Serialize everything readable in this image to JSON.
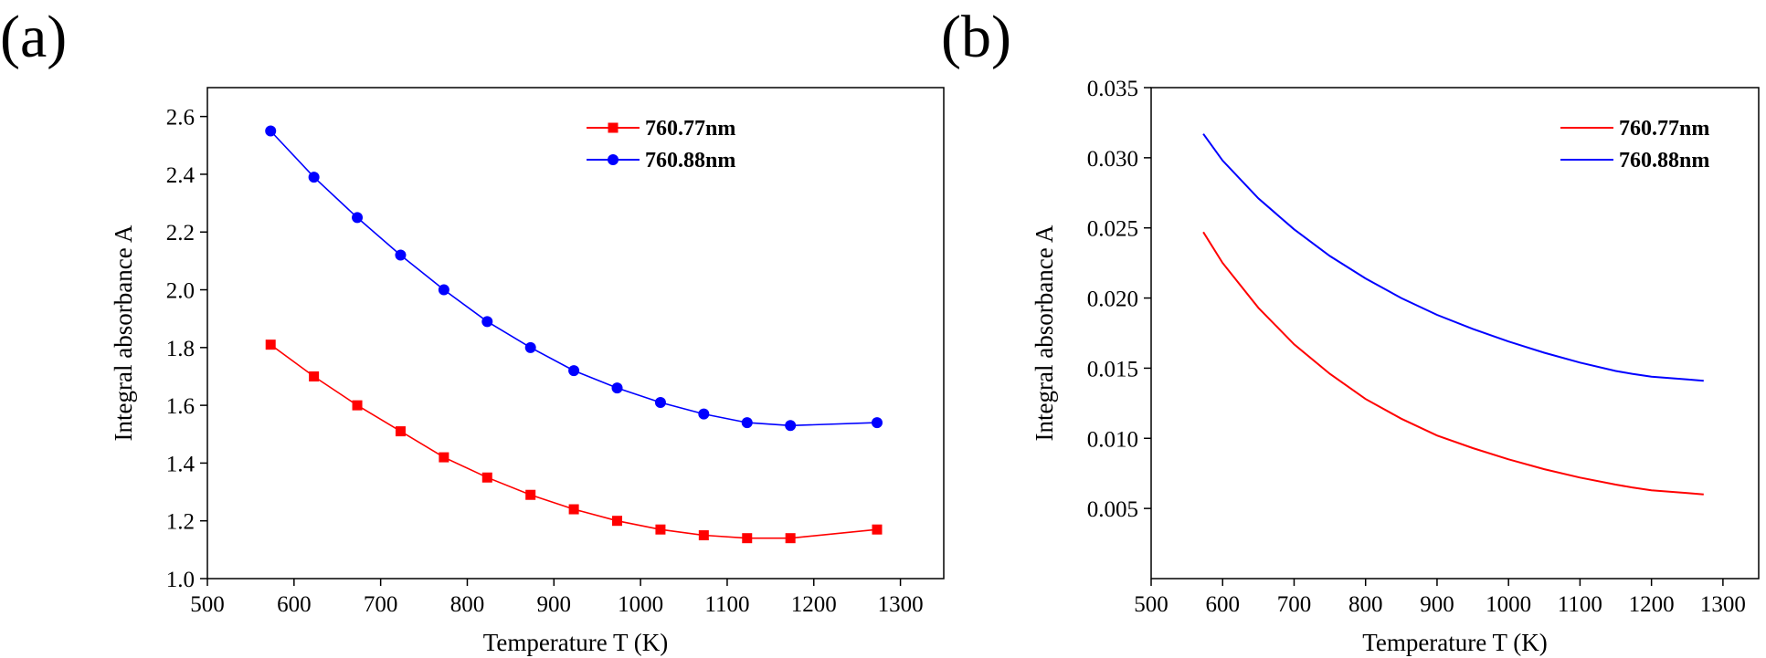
{
  "figure": {
    "panels": [
      {
        "label": "(a)"
      },
      {
        "label": "(b)"
      }
    ]
  },
  "chart_data": [
    {
      "type": "line",
      "panel": "(a)",
      "markers": true,
      "xlabel": "Temperature T (K)",
      "ylabel": "Integral absorbance A",
      "xlim": [
        500,
        1350
      ],
      "ylim": [
        1.0,
        2.7
      ],
      "xticks": [
        500,
        600,
        700,
        800,
        900,
        1000,
        1100,
        1200,
        1300
      ],
      "xtick_labels": [
        "500",
        "600",
        "700",
        "800",
        "900",
        "1000",
        "1100",
        "1200",
        "1300"
      ],
      "yticks": [
        1.0,
        1.2,
        1.4,
        1.6,
        1.8,
        2.0,
        2.2,
        2.4,
        2.6
      ],
      "ytick_labels": [
        "1.0",
        "1.2",
        "1.4",
        "1.6",
        "1.8",
        "2.0",
        "2.2",
        "2.4",
        "2.6"
      ],
      "grid": false,
      "legend_position": "top-right",
      "series": [
        {
          "name": "760.77nm",
          "color": "#ff0000",
          "marker": "square",
          "x": [
            573,
            623,
            673,
            723,
            773,
            823,
            873,
            923,
            973,
            1023,
            1073,
            1123,
            1173,
            1273
          ],
          "y": [
            1.81,
            1.7,
            1.6,
            1.51,
            1.42,
            1.35,
            1.29,
            1.24,
            1.2,
            1.17,
            1.15,
            1.14,
            1.14,
            1.17
          ]
        },
        {
          "name": "760.88nm",
          "color": "#0000ff",
          "marker": "circle",
          "x": [
            573,
            623,
            673,
            723,
            773,
            823,
            873,
            923,
            973,
            1023,
            1073,
            1123,
            1173,
            1273
          ],
          "y": [
            2.55,
            2.39,
            2.25,
            2.12,
            2.0,
            1.89,
            1.8,
            1.72,
            1.66,
            1.61,
            1.57,
            1.54,
            1.53,
            1.54
          ]
        }
      ]
    },
    {
      "type": "line",
      "panel": "(b)",
      "markers": false,
      "xlabel": "Temperature T (K)",
      "ylabel": "Integral absorbance A",
      "xlim": [
        500,
        1350
      ],
      "ylim": [
        0.0,
        0.035
      ],
      "xticks": [
        500,
        600,
        700,
        800,
        900,
        1000,
        1100,
        1200,
        1300
      ],
      "xtick_labels": [
        "500",
        "600",
        "700",
        "800",
        "900",
        "1000",
        "1100",
        "1200",
        "1300"
      ],
      "yticks": [
        0.005,
        0.01,
        0.015,
        0.02,
        0.025,
        0.03,
        0.035
      ],
      "ytick_labels": [
        "0.005",
        "0.010",
        "0.015",
        "0.020",
        "0.025",
        "0.030",
        "0.035"
      ],
      "grid": false,
      "legend_position": "top-right",
      "series": [
        {
          "name": "760.77nm",
          "color": "#ff0000",
          "x": [
            573,
            600,
            650,
            700,
            750,
            800,
            850,
            900,
            950,
            1000,
            1050,
            1100,
            1150,
            1173,
            1200,
            1250,
            1273
          ],
          "y": [
            0.0247,
            0.0225,
            0.0193,
            0.0167,
            0.0146,
            0.0128,
            0.0114,
            0.0102,
            0.0093,
            0.0085,
            0.0078,
            0.0072,
            0.0067,
            0.0065,
            0.0063,
            0.0061,
            0.006
          ]
        },
        {
          "name": "760.88nm",
          "color": "#0000ff",
          "x": [
            573,
            600,
            650,
            700,
            750,
            800,
            850,
            900,
            950,
            1000,
            1050,
            1100,
            1150,
            1173,
            1200,
            1250,
            1273
          ],
          "y": [
            0.0317,
            0.0298,
            0.0271,
            0.0249,
            0.023,
            0.0214,
            0.02,
            0.0188,
            0.0178,
            0.0169,
            0.0161,
            0.0154,
            0.0148,
            0.0146,
            0.0144,
            0.0142,
            0.0141
          ]
        }
      ]
    }
  ]
}
